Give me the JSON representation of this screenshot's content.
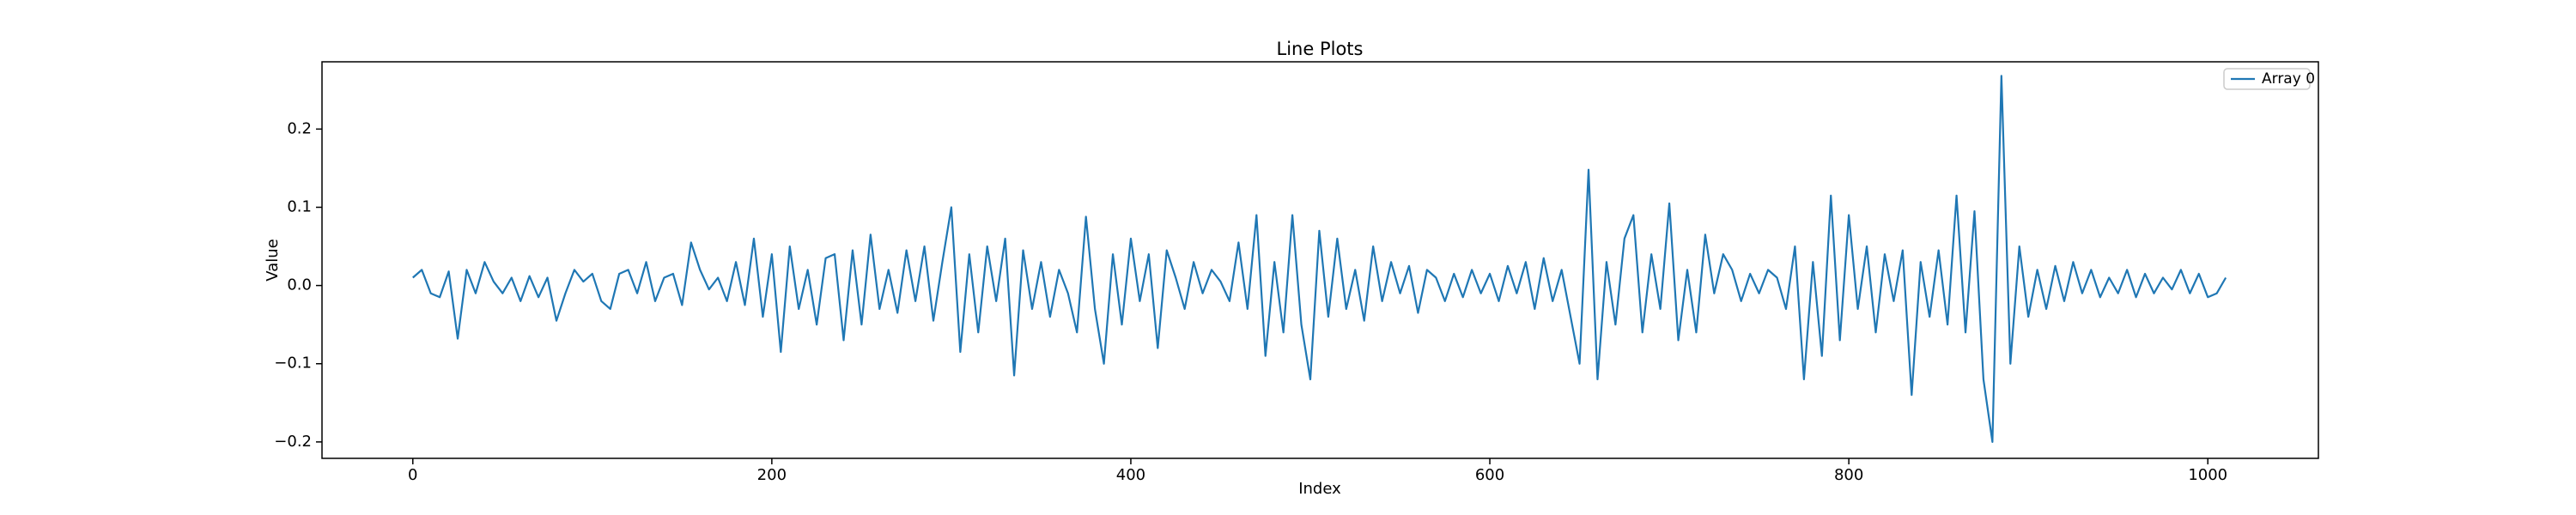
{
  "chart_data": {
    "type": "line",
    "title": "Line Plots",
    "xlabel": "Index",
    "ylabel": "Value",
    "x": [
      0,
      5,
      10,
      15,
      20,
      25,
      30,
      35,
      40,
      45,
      50,
      55,
      60,
      65,
      70,
      75,
      80,
      85,
      90,
      95,
      100,
      105,
      110,
      115,
      120,
      125,
      130,
      135,
      140,
      145,
      150,
      155,
      160,
      165,
      170,
      175,
      180,
      185,
      190,
      195,
      200,
      205,
      210,
      215,
      220,
      225,
      230,
      235,
      240,
      245,
      250,
      255,
      260,
      265,
      270,
      275,
      280,
      285,
      290,
      295,
      300,
      305,
      310,
      315,
      320,
      325,
      330,
      335,
      340,
      345,
      350,
      355,
      360,
      365,
      370,
      375,
      380,
      385,
      390,
      395,
      400,
      405,
      410,
      415,
      420,
      425,
      430,
      435,
      440,
      445,
      450,
      455,
      460,
      465,
      470,
      475,
      480,
      485,
      490,
      495,
      500,
      505,
      510,
      515,
      520,
      525,
      530,
      535,
      540,
      545,
      550,
      555,
      560,
      565,
      570,
      575,
      580,
      585,
      590,
      595,
      600,
      605,
      610,
      615,
      620,
      625,
      630,
      635,
      640,
      645,
      650,
      655,
      660,
      665,
      670,
      675,
      680,
      685,
      690,
      695,
      700,
      705,
      710,
      715,
      720,
      725,
      730,
      735,
      740,
      745,
      750,
      755,
      760,
      765,
      770,
      775,
      780,
      785,
      790,
      795,
      800,
      805,
      810,
      815,
      820,
      825,
      830,
      835,
      840,
      845,
      850,
      855,
      860,
      865,
      870,
      875,
      880,
      885,
      890,
      895,
      900,
      905,
      910,
      915,
      920,
      925,
      930,
      935,
      940,
      945,
      950,
      955,
      960,
      965,
      970,
      975,
      980,
      985,
      990,
      995,
      1000,
      1005,
      1010
    ],
    "series": [
      {
        "name": "Array 0",
        "color": "#1f77b4",
        "values": [
          0.01,
          0.02,
          -0.01,
          -0.015,
          0.018,
          -0.068,
          0.02,
          -0.01,
          0.03,
          0.005,
          -0.01,
          0.01,
          -0.02,
          0.012,
          -0.015,
          0.01,
          -0.045,
          -0.01,
          0.02,
          0.005,
          0.015,
          -0.02,
          -0.03,
          0.015,
          0.02,
          -0.01,
          0.03,
          -0.02,
          0.01,
          0.015,
          -0.025,
          0.055,
          0.02,
          -0.005,
          0.01,
          -0.02,
          0.03,
          -0.025,
          0.06,
          -0.04,
          0.04,
          -0.085,
          0.05,
          -0.03,
          0.02,
          -0.05,
          0.035,
          0.04,
          -0.07,
          0.045,
          -0.05,
          0.065,
          -0.03,
          0.02,
          -0.035,
          0.045,
          -0.02,
          0.05,
          -0.045,
          0.03,
          0.1,
          -0.085,
          0.04,
          -0.06,
          0.05,
          -0.02,
          0.06,
          -0.115,
          0.045,
          -0.03,
          0.03,
          -0.04,
          0.02,
          -0.01,
          -0.06,
          0.088,
          -0.03,
          -0.1,
          0.04,
          -0.05,
          0.06,
          -0.02,
          0.04,
          -0.08,
          0.045,
          0.01,
          -0.03,
          0.03,
          -0.01,
          0.02,
          0.005,
          -0.02,
          0.055,
          -0.03,
          0.09,
          -0.09,
          0.03,
          -0.06,
          0.09,
          -0.05,
          -0.12,
          0.07,
          -0.04,
          0.06,
          -0.03,
          0.02,
          -0.045,
          0.05,
          -0.02,
          0.03,
          -0.01,
          0.025,
          -0.035,
          0.02,
          0.01,
          -0.02,
          0.015,
          -0.015,
          0.02,
          -0.01,
          0.015,
          -0.02,
          0.025,
          -0.01,
          0.03,
          -0.03,
          0.035,
          -0.02,
          0.02,
          -0.04,
          -0.1,
          0.148,
          -0.12,
          0.03,
          -0.05,
          0.06,
          0.09,
          -0.06,
          0.04,
          -0.03,
          0.105,
          -0.07,
          0.02,
          -0.06,
          0.065,
          -0.01,
          0.04,
          0.02,
          -0.02,
          0.015,
          -0.01,
          0.02,
          0.01,
          -0.03,
          0.05,
          -0.12,
          0.03,
          -0.09,
          0.115,
          -0.07,
          0.09,
          -0.03,
          0.05,
          -0.06,
          0.04,
          -0.02,
          0.045,
          -0.14,
          0.03,
          -0.04,
          0.045,
          -0.05,
          0.115,
          -0.06,
          0.095,
          -0.12,
          -0.2,
          0.268,
          -0.1,
          0.05,
          -0.04,
          0.02,
          -0.03,
          0.025,
          -0.02,
          0.03,
          -0.01,
          0.02,
          -0.015,
          0.01,
          -0.01,
          0.02,
          -0.015,
          0.015,
          -0.01,
          0.01,
          -0.005,
          0.02,
          -0.01,
          0.015,
          -0.015,
          -0.01,
          0.01
        ]
      }
    ],
    "xlim": [
      -50.6,
      1061.6
    ],
    "xticks": [
      0,
      200,
      400,
      600,
      800,
      1000
    ],
    "ylim": [
      -0.221,
      0.286
    ],
    "yticks": [
      {
        "value": -0.2,
        "label": "−0.2"
      },
      {
        "value": -0.1,
        "label": "−0.1"
      },
      {
        "value": 0,
        "label": "0.0"
      },
      0.1,
      0.2
    ],
    "legend": "upper right",
    "grid": false
  }
}
